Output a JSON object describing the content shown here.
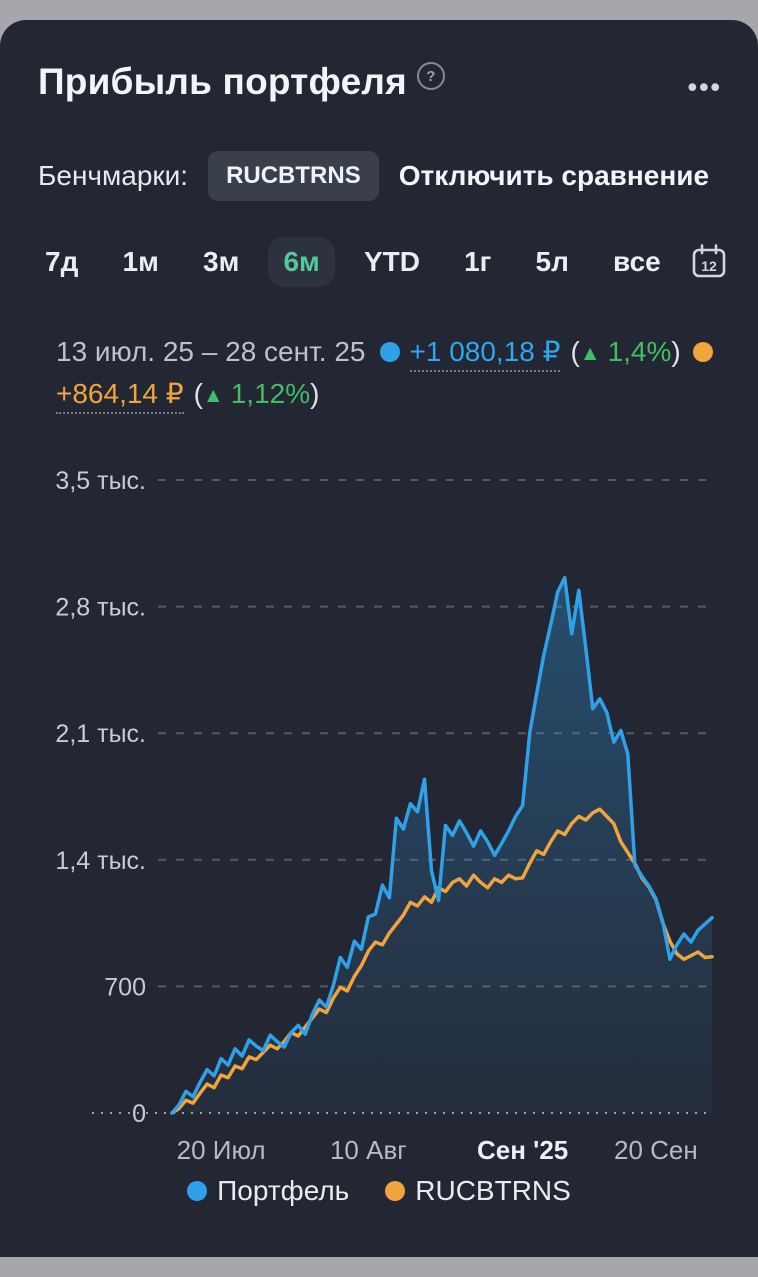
{
  "header": {
    "title": "Прибыль портфеля"
  },
  "icons": {
    "help": "?",
    "more": "•••"
  },
  "benchmarks": {
    "label": "Бенчмарки:",
    "benchmark_name": "RUCBTRNS",
    "disable_link": "Отключить сравнение"
  },
  "ranges": {
    "items": [
      {
        "label": "7д",
        "selected": false
      },
      {
        "label": "1м",
        "selected": false
      },
      {
        "label": "3м",
        "selected": false
      },
      {
        "label": "6м",
        "selected": true
      },
      {
        "label": "YTD",
        "selected": false
      },
      {
        "label": "1г",
        "selected": false
      },
      {
        "label": "5л",
        "selected": false
      },
      {
        "label": "все",
        "selected": false
      }
    ],
    "calendar_day": "12"
  },
  "summary": {
    "date_range": "13 июл. 25 – 28 сент. 25",
    "portfolio": {
      "value": "+1 080,18 ₽",
      "percent": "1,4%"
    },
    "benchmark": {
      "value": "+864,14 ₽",
      "percent": "1,12%"
    },
    "symbols": {
      "lparen": "(",
      "rparen": ")",
      "arrow_up": "▲"
    }
  },
  "legend": [
    {
      "label": "Портфель",
      "color": "#2fa1e8"
    },
    {
      "label": "RUCBTRNS",
      "color": "#f1a33c"
    }
  ],
  "colors": {
    "card_bg": "#232733",
    "portfolio_line": "#2fa1e8",
    "benchmark_line": "#f1a33c",
    "positive_green": "#42bc66",
    "selected_tab_text": "#57c79d",
    "grid_dash": "#545963",
    "zero_dotted": "#9ca2ad"
  },
  "chart_data": {
    "type": "line",
    "x_unit": "day_index_from_2025-07-13",
    "xlim": [
      0,
      77
    ],
    "ylim": [
      0,
      3500
    ],
    "grid": "dashed-horizontal",
    "legend_position": "bottom",
    "y_ticks": [
      {
        "value": 0,
        "label": "0"
      },
      {
        "value": 700,
        "label": "700"
      },
      {
        "value": 1400,
        "label": "1,4 тыс."
      },
      {
        "value": 2100,
        "label": "2,1 тыс."
      },
      {
        "value": 2800,
        "label": "2,8 тыс."
      },
      {
        "value": 3500,
        "label": "3,5 тыс."
      }
    ],
    "x_ticks": [
      {
        "value": 7,
        "label": "20 Июл",
        "bold": false
      },
      {
        "value": 28,
        "label": "10 Авг",
        "bold": false
      },
      {
        "value": 50,
        "label": "Сен '25",
        "bold": true
      },
      {
        "value": 69,
        "label": "20 Сен",
        "bold": false
      }
    ],
    "series": [
      {
        "name": "Портфель",
        "color": "#2fa1e8",
        "fill": true,
        "values": [
          0,
          45,
          120,
          90,
          170,
          240,
          205,
          300,
          265,
          355,
          315,
          405,
          370,
          345,
          430,
          395,
          365,
          445,
          485,
          435,
          545,
          625,
          585,
          705,
          860,
          805,
          950,
          905,
          1085,
          1100,
          1260,
          1190,
          1630,
          1570,
          1710,
          1665,
          1845,
          1340,
          1175,
          1590,
          1535,
          1615,
          1550,
          1475,
          1560,
          1500,
          1425,
          1490,
          1560,
          1640,
          1700,
          2100,
          2320,
          2530,
          2700,
          2880,
          2960,
          2650,
          2890,
          2570,
          2235,
          2290,
          2215,
          2050,
          2115,
          1985,
          1370,
          1310,
          1255,
          1185,
          1055,
          850,
          930,
          990,
          945,
          1010,
          1045,
          1080
        ]
      },
      {
        "name": "RUCBTRNS",
        "color": "#f1a33c",
        "fill": false,
        "values": [
          0,
          25,
          70,
          55,
          110,
          160,
          140,
          210,
          195,
          260,
          245,
          310,
          295,
          335,
          375,
          355,
          395,
          445,
          425,
          475,
          525,
          575,
          555,
          635,
          695,
          675,
          755,
          815,
          895,
          945,
          930,
          995,
          1045,
          1095,
          1165,
          1145,
          1195,
          1165,
          1245,
          1225,
          1275,
          1295,
          1255,
          1315,
          1275,
          1245,
          1295,
          1275,
          1315,
          1295,
          1300,
          1380,
          1450,
          1430,
          1500,
          1560,
          1540,
          1600,
          1640,
          1620,
          1660,
          1680,
          1640,
          1600,
          1500,
          1440,
          1380,
          1300,
          1250,
          1180,
          1050,
          950,
          880,
          850,
          870,
          890,
          860,
          864
        ]
      }
    ]
  }
}
